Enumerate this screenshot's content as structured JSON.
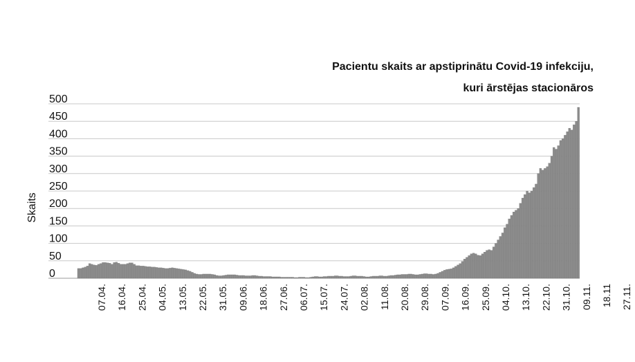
{
  "chart_data": {
    "type": "bar",
    "title_lines": [
      "Pacientu skaits ar apstiprinātu Covid-19 infekciju,",
      "kuri ārstējas stacionāros"
    ],
    "xlabel": "",
    "ylabel": "Skaits",
    "ylim": [
      0,
      500
    ],
    "yticks": [
      0,
      50,
      100,
      150,
      200,
      250,
      300,
      350,
      400,
      450,
      500
    ],
    "grid": true,
    "x_tick_labels": [
      "07.04.",
      "16.04.",
      "25.04.",
      "04.05.",
      "13.05.",
      "22.05.",
      "31.05.",
      "09.06.",
      "18.06.",
      "27.06.",
      "06.07.",
      "15.07.",
      "24.07.",
      "02.08.",
      "11.08.",
      "20.08.",
      "29.08.",
      "07.09.",
      "16.09.",
      "25.09.",
      "04.10.",
      "13.10.",
      "22.10.",
      "31.10.",
      "09.11.",
      "18.11",
      "27.11."
    ],
    "start_date": "2020-04-02",
    "end_date": "2020-11-27",
    "series": [
      {
        "name": "",
        "color": "#8c8c8c",
        "values": [
          28,
          28,
          30,
          32,
          35,
          42,
          40,
          38,
          37,
          40,
          42,
          45,
          45,
          44,
          43,
          40,
          45,
          46,
          43,
          40,
          40,
          40,
          42,
          44,
          44,
          40,
          36,
          36,
          35,
          35,
          34,
          33,
          33,
          32,
          32,
          31,
          30,
          30,
          29,
          28,
          28,
          29,
          30,
          29,
          28,
          27,
          26,
          25,
          24,
          22,
          20,
          17,
          14,
          12,
          11,
          11,
          12,
          12,
          12,
          12,
          11,
          10,
          8,
          7,
          7,
          8,
          9,
          10,
          10,
          10,
          10,
          9,
          8,
          8,
          8,
          7,
          7,
          7,
          8,
          8,
          7,
          6,
          6,
          5,
          5,
          5,
          5,
          4,
          4,
          4,
          4,
          3,
          3,
          3,
          3,
          3,
          3,
          2,
          2,
          3,
          3,
          3,
          2,
          2,
          3,
          4,
          5,
          5,
          4,
          4,
          5,
          5,
          6,
          6,
          6,
          7,
          7,
          6,
          6,
          5,
          5,
          5,
          6,
          7,
          7,
          6,
          6,
          6,
          5,
          4,
          4,
          5,
          6,
          6,
          6,
          7,
          7,
          6,
          6,
          7,
          8,
          8,
          9,
          10,
          10,
          11,
          11,
          11,
          12,
          12,
          11,
          10,
          10,
          11,
          12,
          13,
          13,
          12,
          12,
          11,
          12,
          14,
          17,
          20,
          23,
          25,
          26,
          27,
          30,
          34,
          38,
          42,
          48,
          55,
          60,
          65,
          70,
          72,
          70,
          66,
          65,
          70,
          75,
          80,
          82,
          80,
          90,
          100,
          110,
          120,
          130,
          145,
          155,
          170,
          180,
          190,
          195,
          200,
          215,
          230,
          240,
          250,
          245,
          250,
          260,
          270,
          300,
          315,
          310,
          315,
          320,
          330,
          350,
          375,
          370,
          380,
          395,
          400,
          410,
          420,
          430,
          425,
          440,
          450,
          490
        ]
      }
    ]
  }
}
